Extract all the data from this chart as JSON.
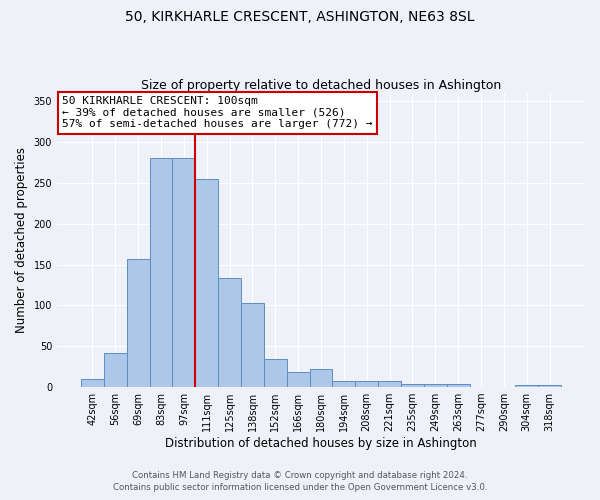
{
  "title": "50, KIRKHARLE CRESCENT, ASHINGTON, NE63 8SL",
  "subtitle": "Size of property relative to detached houses in Ashington",
  "xlabel": "Distribution of detached houses by size in Ashington",
  "ylabel": "Number of detached properties",
  "bar_labels": [
    "42sqm",
    "56sqm",
    "69sqm",
    "83sqm",
    "97sqm",
    "111sqm",
    "125sqm",
    "138sqm",
    "152sqm",
    "166sqm",
    "180sqm",
    "194sqm",
    "208sqm",
    "221sqm",
    "235sqm",
    "249sqm",
    "263sqm",
    "277sqm",
    "290sqm",
    "304sqm",
    "318sqm"
  ],
  "bar_values": [
    10,
    42,
    157,
    280,
    280,
    255,
    133,
    103,
    35,
    18,
    22,
    8,
    8,
    8,
    4,
    4,
    4,
    0,
    0,
    3,
    2
  ],
  "bar_color": "#aec6e8",
  "bar_edge_color": "#5a8fc2",
  "red_line_color": "#cc0000",
  "annotation_title": "50 KIRKHARLE CRESCENT: 100sqm",
  "annotation_line1": "← 39% of detached houses are smaller (526)",
  "annotation_line2": "57% of semi-detached houses are larger (772) →",
  "annotation_box_color": "#ffffff",
  "annotation_box_edge": "#cc0000",
  "ylim": [
    0,
    360
  ],
  "yticks": [
    0,
    50,
    100,
    150,
    200,
    250,
    300,
    350
  ],
  "footer1": "Contains HM Land Registry data © Crown copyright and database right 2024.",
  "footer2": "Contains public sector information licensed under the Open Government Licence v3.0.",
  "bg_color": "#eef2f8",
  "plot_bg_color": "#eef2f8",
  "title_fontsize": 10,
  "subtitle_fontsize": 9
}
